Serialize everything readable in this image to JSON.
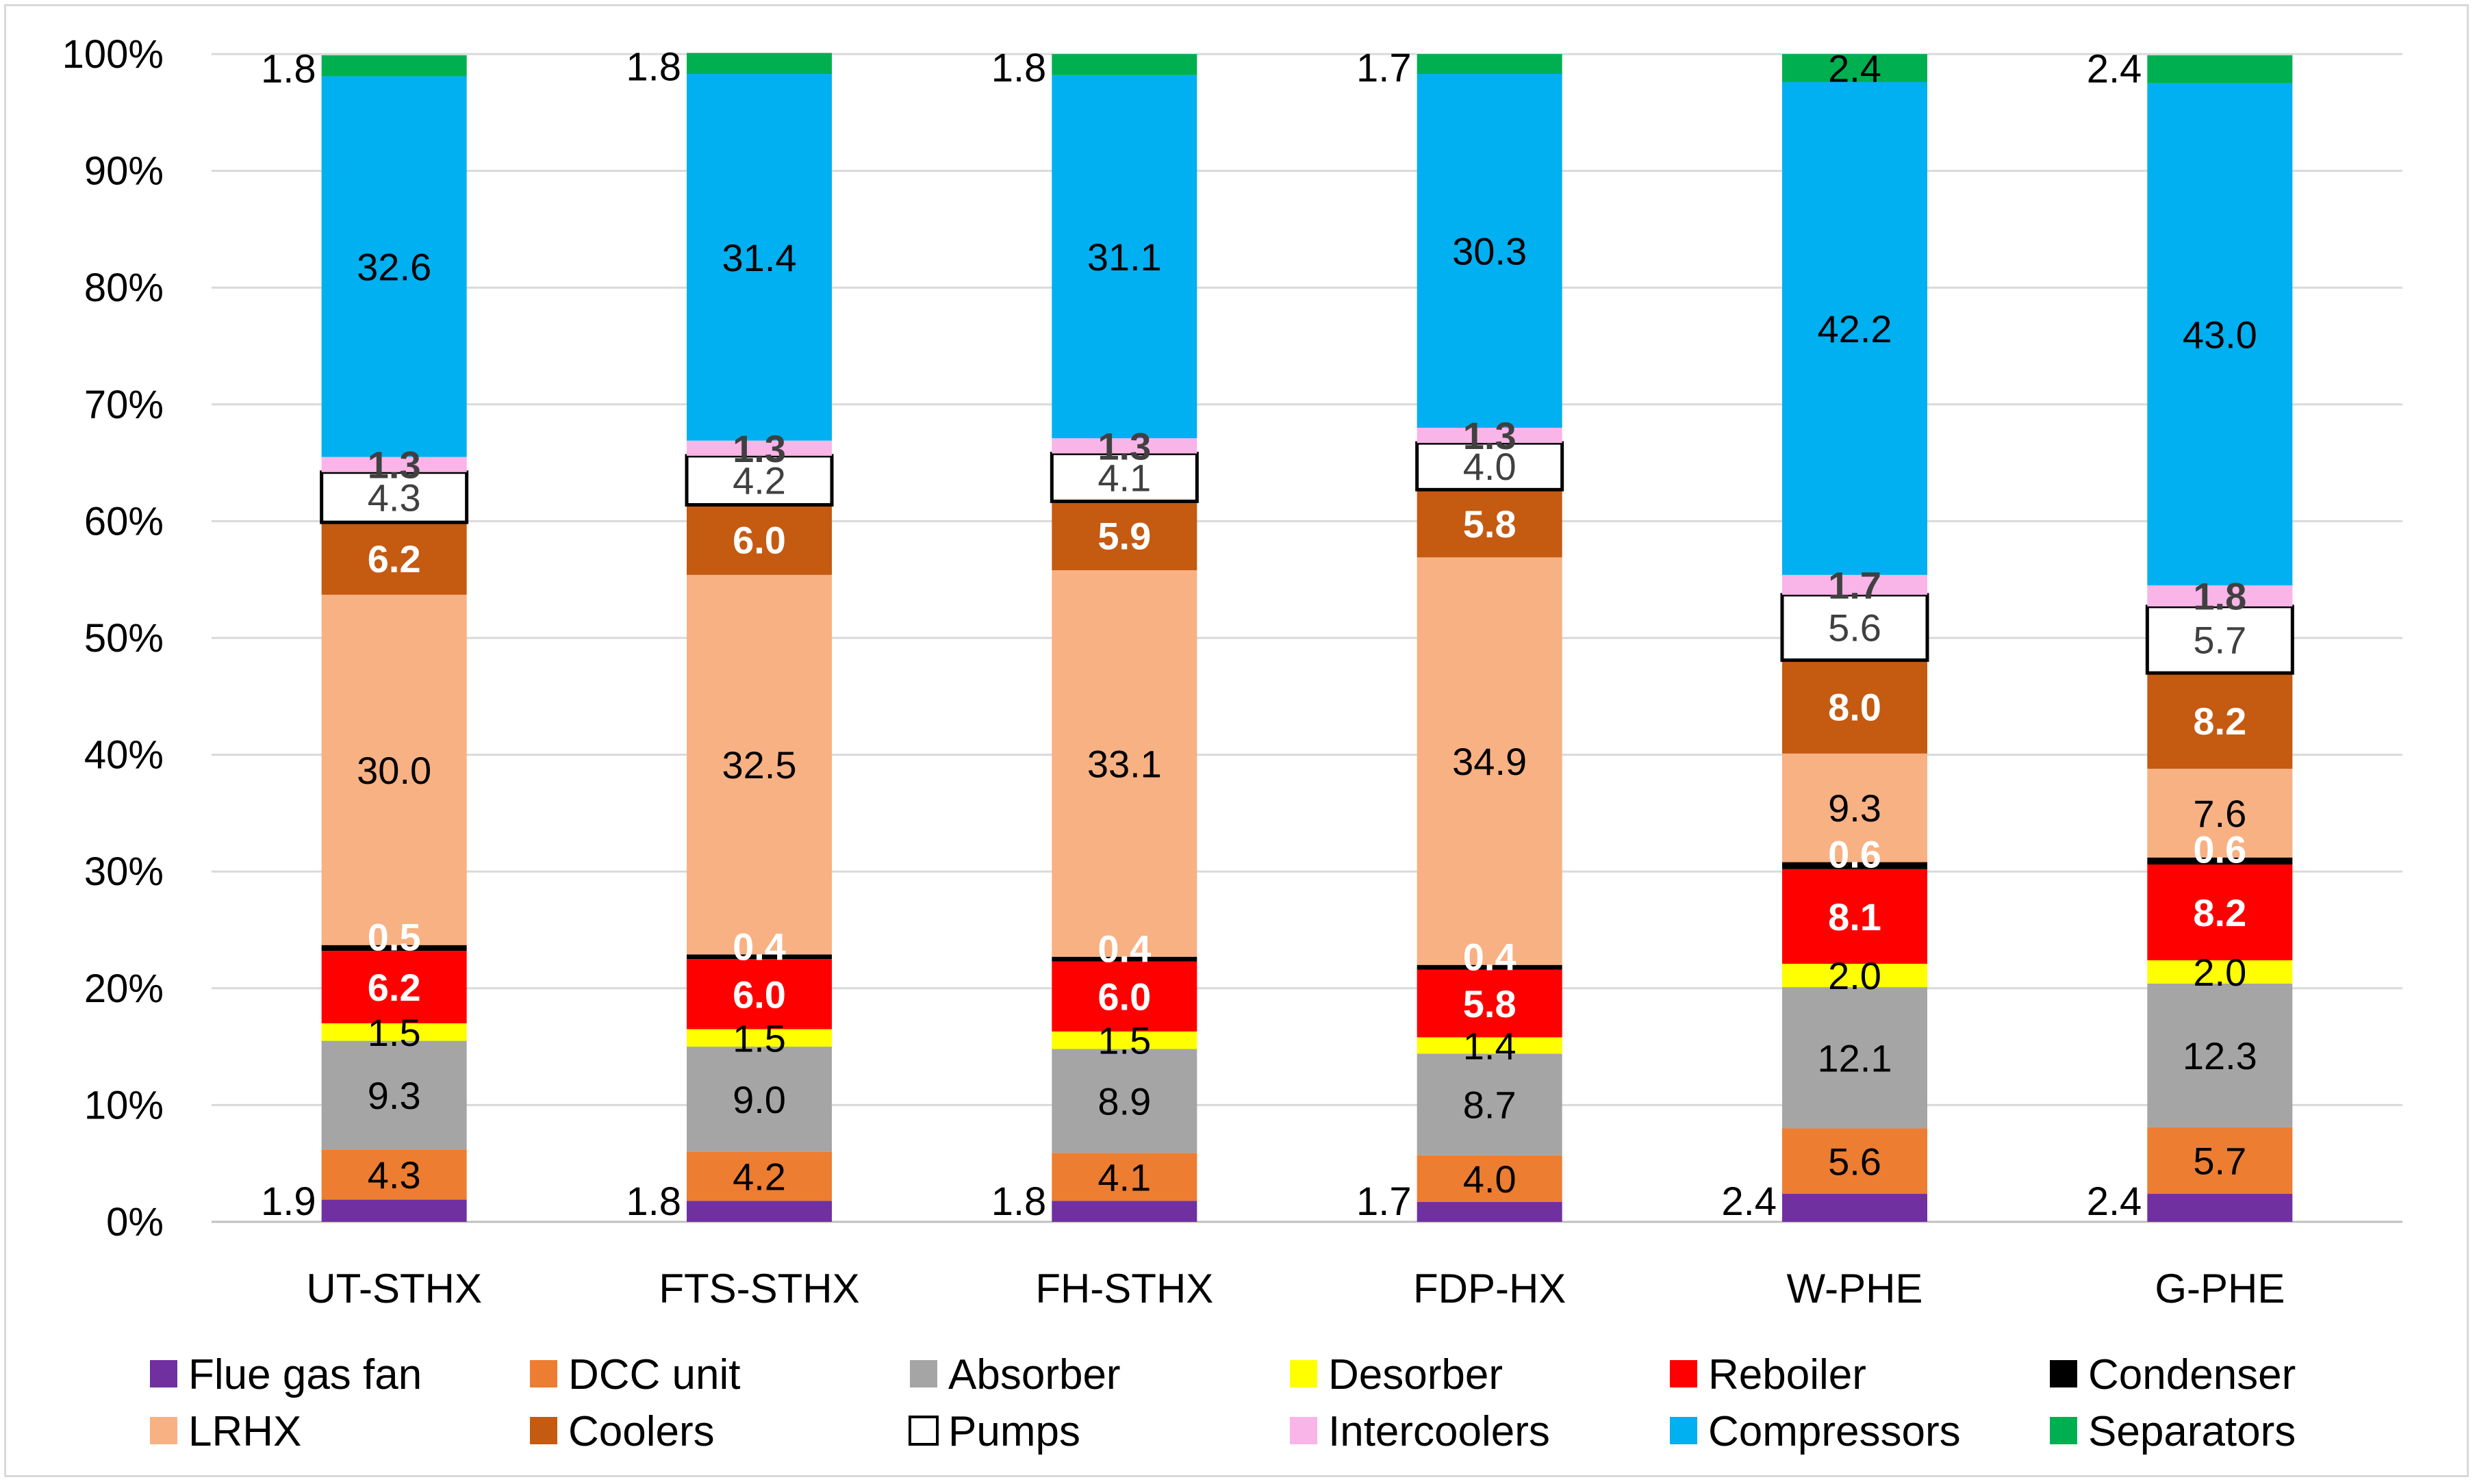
{
  "chart_data": {
    "type": "bar",
    "stacked": true,
    "title": "",
    "xlabel": "",
    "ylabel": "",
    "ylim": [
      0,
      100
    ],
    "y_unit": "%",
    "yticks": [
      "0%",
      "10%",
      "20%",
      "30%",
      "40%",
      "50%",
      "60%",
      "70%",
      "80%",
      "90%",
      "100%"
    ],
    "grid": true,
    "legend_position": "bottom",
    "categories": [
      "UT-STHX",
      "FTS-STHX",
      "FH-STHX",
      "FDP-HX",
      "W-PHE",
      "G-PHE"
    ],
    "series": [
      {
        "name": "Flue gas fan",
        "color": "#7030a0",
        "label_color": "#000000",
        "label_bold": false,
        "label_outside": true,
        "values": [
          1.9,
          1.8,
          1.8,
          1.7,
          2.4,
          2.4
        ],
        "labels": [
          "1.9",
          "1.8",
          "1.8",
          "1.7",
          "2.4",
          "2.4"
        ]
      },
      {
        "name": "DCC unit",
        "color": "#ed7d31",
        "label_color": "#000000",
        "label_bold": false,
        "values": [
          4.3,
          4.2,
          4.1,
          4.0,
          5.6,
          5.7
        ],
        "labels": [
          "4.3",
          "4.2",
          "4.1",
          "4.0",
          "5.6",
          "5.7"
        ]
      },
      {
        "name": "Absorber",
        "color": "#a5a5a5",
        "label_color": "#000000",
        "label_bold": false,
        "values": [
          9.3,
          9.0,
          8.9,
          8.7,
          12.1,
          12.3
        ],
        "labels": [
          "9.3",
          "9.0",
          "8.9",
          "8.7",
          "12.1",
          "12.3"
        ]
      },
      {
        "name": "Desorber",
        "color": "#ffff00",
        "label_color": "#000000",
        "label_bold": false,
        "values": [
          1.5,
          1.5,
          1.5,
          1.4,
          2.0,
          2.0
        ],
        "labels": [
          "1.5",
          "1.5",
          "1.5",
          "1.4",
          "2.0",
          "2.0"
        ]
      },
      {
        "name": "Reboiler",
        "color": "#ff0000",
        "label_color": "#ffffff",
        "label_bold": true,
        "values": [
          6.2,
          6.0,
          6.0,
          5.8,
          8.1,
          8.2
        ],
        "labels": [
          "6.2",
          "6.0",
          "6.0",
          "5.8",
          "8.1",
          "8.2"
        ]
      },
      {
        "name": "Condenser",
        "color": "#000000",
        "label_color": "#ffffff",
        "label_bold": true,
        "values": [
          0.5,
          0.4,
          0.4,
          0.4,
          0.6,
          0.6
        ],
        "labels": [
          "0.5",
          "0.4",
          "0.4",
          "0.4",
          "0.6",
          "0.6"
        ]
      },
      {
        "name": "LRHX",
        "color": "#f8b183",
        "label_color": "#000000",
        "label_bold": false,
        "values": [
          30.0,
          32.5,
          33.1,
          34.9,
          9.3,
          7.6
        ],
        "labels": [
          "30.0",
          "32.5",
          "33.1",
          "34.9",
          "9.3",
          "7.6"
        ]
      },
      {
        "name": "Coolers",
        "color": "#c55a11",
        "label_color": "#ffffff",
        "label_bold": true,
        "values": [
          6.2,
          6.0,
          5.9,
          5.8,
          8.0,
          8.2
        ],
        "labels": [
          "6.2",
          "6.0",
          "5.9",
          "5.8",
          "8.0",
          "8.2"
        ]
      },
      {
        "name": "Pumps",
        "color": "#ffffff",
        "label_color": "#404040",
        "label_bold": false,
        "values": [
          4.3,
          4.2,
          4.1,
          4.0,
          5.6,
          5.7
        ],
        "labels": [
          "4.3",
          "4.2",
          "4.1",
          "4.0",
          "5.6",
          "5.7"
        ]
      },
      {
        "name": "Intercoolers",
        "color": "#f9b4e8",
        "label_color": "#404040",
        "label_bold": true,
        "values": [
          1.3,
          1.3,
          1.3,
          1.3,
          1.7,
          1.8
        ],
        "labels": [
          "1.3",
          "1.3",
          "1.3",
          "1.3",
          "1.7",
          "1.8"
        ]
      },
      {
        "name": "Compressors",
        "color": "#00b0f0",
        "label_color": "#000000",
        "label_bold": false,
        "values": [
          32.6,
          31.4,
          31.1,
          30.3,
          42.2,
          43.0
        ],
        "labels": [
          "32.6",
          "31.4",
          "31.1",
          "30.3",
          "42.2",
          "43.0"
        ]
      },
      {
        "name": "Separators",
        "color": "#00b050",
        "label_color": "#000000",
        "label_bold": false,
        "label_outside_for": [
          0,
          1,
          2,
          3,
          5
        ],
        "values": [
          1.8,
          1.8,
          1.8,
          1.7,
          2.4,
          2.4
        ],
        "labels": [
          "1.8",
          "1.8",
          "1.8",
          "1.7",
          "2.4",
          "2.4"
        ]
      }
    ]
  }
}
